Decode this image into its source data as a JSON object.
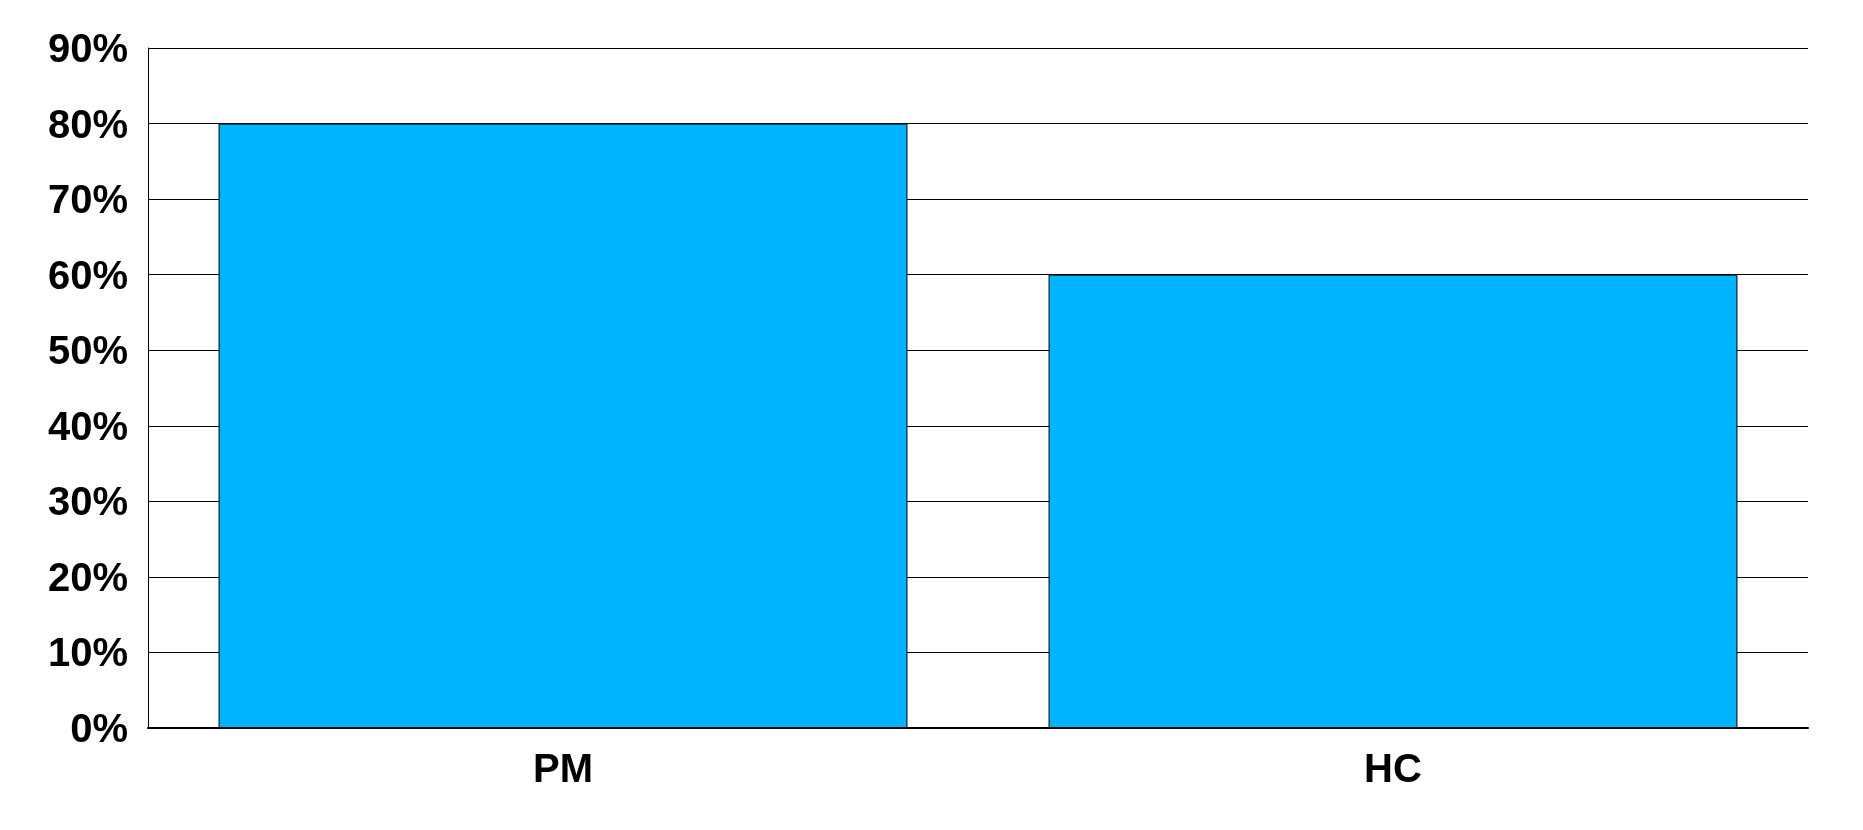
{
  "chart_data": {
    "type": "bar",
    "categories": [
      "PM",
      "HC"
    ],
    "values": [
      80,
      60
    ],
    "color": "#00b4ff",
    "ylim": [
      0,
      90
    ],
    "yticks": [
      {
        "value": 0,
        "label": "0%"
      },
      {
        "value": 10,
        "label": "10%"
      },
      {
        "value": 20,
        "label": "20%"
      },
      {
        "value": 30,
        "label": "30%"
      },
      {
        "value": 40,
        "label": "40%"
      },
      {
        "value": 50,
        "label": "50%"
      },
      {
        "value": 60,
        "label": "60%"
      },
      {
        "value": 70,
        "label": "70%"
      },
      {
        "value": 80,
        "label": "80%"
      },
      {
        "value": 90,
        "label": "90%"
      }
    ],
    "grid": true
  }
}
